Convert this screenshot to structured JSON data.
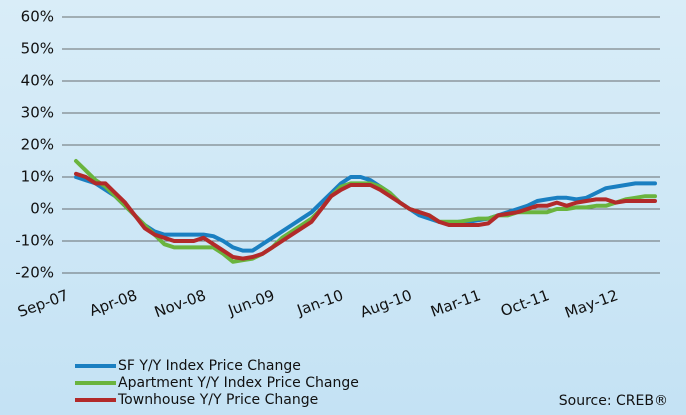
{
  "chart_data": {
    "type": "line",
    "categories": [
      "Sep-07",
      null,
      null,
      null,
      null,
      null,
      null,
      "Apr-08",
      null,
      null,
      null,
      null,
      null,
      null,
      "Nov-08",
      null,
      null,
      null,
      null,
      null,
      null,
      "Jun-09",
      null,
      null,
      null,
      null,
      null,
      null,
      "Jan-10",
      null,
      null,
      null,
      null,
      null,
      null,
      "Aug-10",
      null,
      null,
      null,
      null,
      null,
      null,
      "Mar-11",
      null,
      null,
      null,
      null,
      null,
      null,
      "Oct-11",
      null,
      null,
      null,
      null,
      null,
      null,
      "May-12",
      null,
      null,
      null
    ],
    "series": [
      {
        "name": "SF Y/Y Index Price Change",
        "color": "#1a7fc1",
        "values": [
          10,
          9,
          8,
          6,
          4,
          1,
          -2,
          -5,
          -7,
          -8,
          -8,
          -8,
          -8,
          -8,
          -8.5,
          -10,
          -12,
          -13,
          -13,
          -11,
          -9,
          -7,
          -5,
          -3,
          -1,
          2,
          5,
          8,
          10,
          10,
          9,
          7,
          5,
          2,
          0,
          -2,
          -3,
          -4,
          -4.5,
          -4,
          -4,
          -3.5,
          -3,
          -2,
          -1,
          0,
          1,
          2.5,
          3,
          3.5,
          3.5,
          3,
          3.5,
          5,
          6.5,
          7,
          7.5,
          8,
          8,
          8
        ]
      },
      {
        "name": "Apartment Y/Y Index Price Change",
        "color": "#6ab43e",
        "values": [
          15,
          12,
          9,
          7,
          4,
          1,
          -2,
          -5,
          -8,
          -11,
          -12,
          -12,
          -12,
          -12,
          -12,
          -14,
          -16.5,
          -16,
          -15.5,
          -14,
          -12,
          -9,
          -7,
          -5,
          -3,
          0,
          4,
          7,
          8,
          8,
          8,
          7,
          5,
          2,
          0,
          -1,
          -2,
          -4,
          -4,
          -4,
          -3.5,
          -3,
          -3,
          -2,
          -2,
          -1,
          -1,
          -1,
          -1,
          0,
          0,
          0.5,
          0.5,
          1,
          1,
          2,
          3,
          3.5,
          4,
          4
        ]
      },
      {
        "name": "Townhouse Y/Y Price Change",
        "color": "#b22a2a",
        "values": [
          11,
          10,
          8,
          8,
          5,
          2,
          -2,
          -6,
          -8,
          -9,
          -10,
          -10,
          -10,
          -9,
          -11,
          -13,
          -15,
          -15.5,
          -15,
          -14,
          -12,
          -10,
          -8,
          -6,
          -4,
          0,
          4,
          6,
          7.5,
          7.5,
          7.5,
          6,
          4,
          2,
          0,
          -1,
          -2,
          -4,
          -5,
          -5,
          -5,
          -5,
          -4.5,
          -2,
          -1.5,
          -1,
          0,
          1,
          1,
          2,
          1,
          2,
          2.5,
          3,
          3,
          2,
          2.5,
          2.5,
          2.5,
          2.5
        ]
      }
    ],
    "ylim": [
      -20,
      60
    ],
    "yticks": [
      {
        "value": -20,
        "label": "-20%"
      },
      {
        "value": -10,
        "label": "-10%"
      },
      {
        "value": 0,
        "label": "0%"
      },
      {
        "value": 10,
        "label": "10%"
      },
      {
        "value": 20,
        "label": "20%"
      },
      {
        "value": 30,
        "label": "30%"
      },
      {
        "value": 40,
        "label": "40%"
      },
      {
        "value": 50,
        "label": "50%"
      },
      {
        "value": 60,
        "label": "60%"
      }
    ],
    "grid": true,
    "source": "Source: CREB®"
  }
}
